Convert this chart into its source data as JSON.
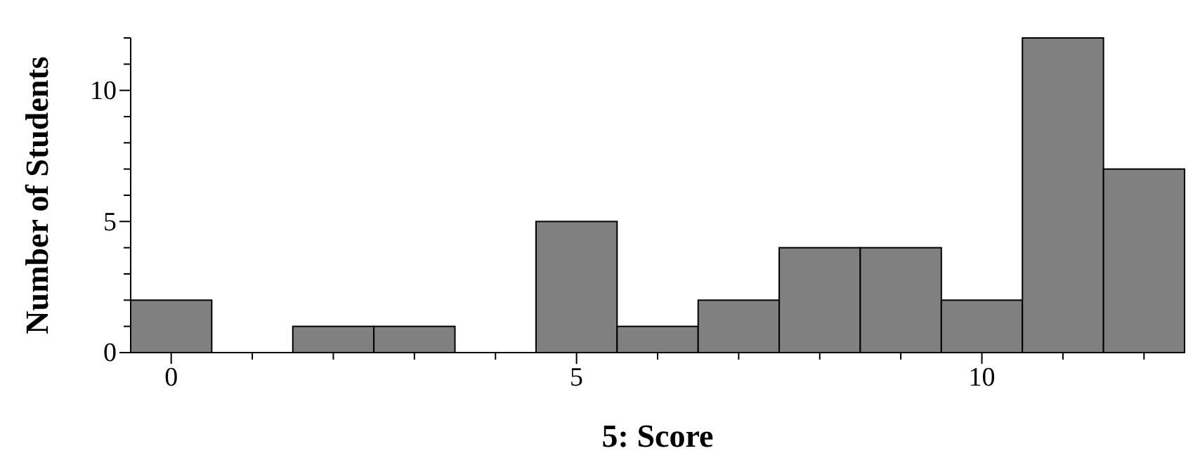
{
  "chart_data": {
    "type": "histogram",
    "xlabel": "5: Score",
    "ylabel": "Number of Students",
    "bins": [
      -0.5,
      0.5,
      1.5,
      2.5,
      3.5,
      4.5,
      5.5,
      6.5,
      7.5,
      8.5,
      9.5,
      10.5,
      11.5,
      12.5
    ],
    "values": [
      2,
      0,
      1,
      1,
      0,
      5,
      1,
      2,
      4,
      4,
      2,
      12,
      7
    ],
    "color": "#808080",
    "xlim": [
      -0.5,
      12.5
    ],
    "xticks": [
      0,
      {
        "value": 1,
        "label": null
      },
      {
        "value": 2,
        "label": null
      },
      {
        "value": 3,
        "label": null
      },
      {
        "value": 4,
        "label": null
      },
      5,
      {
        "value": 6,
        "label": null
      },
      {
        "value": 7,
        "label": null
      },
      {
        "value": 8,
        "label": null
      },
      {
        "value": 9,
        "label": null
      },
      10,
      {
        "value": 11,
        "label": null
      },
      {
        "value": 12,
        "label": null
      }
    ],
    "ylim": [
      0,
      12
    ],
    "yticks": [
      0,
      {
        "value": 1,
        "label": null
      },
      {
        "value": 2,
        "label": null
      },
      {
        "value": 3,
        "label": null
      },
      {
        "value": 4,
        "label": null
      },
      5,
      {
        "value": 6,
        "label": null
      },
      {
        "value": 7,
        "label": null
      },
      {
        "value": 8,
        "label": null
      },
      {
        "value": 9,
        "label": null
      },
      10,
      {
        "value": 11,
        "label": null
      },
      {
        "value": 12,
        "label": null
      }
    ],
    "grid": false
  }
}
